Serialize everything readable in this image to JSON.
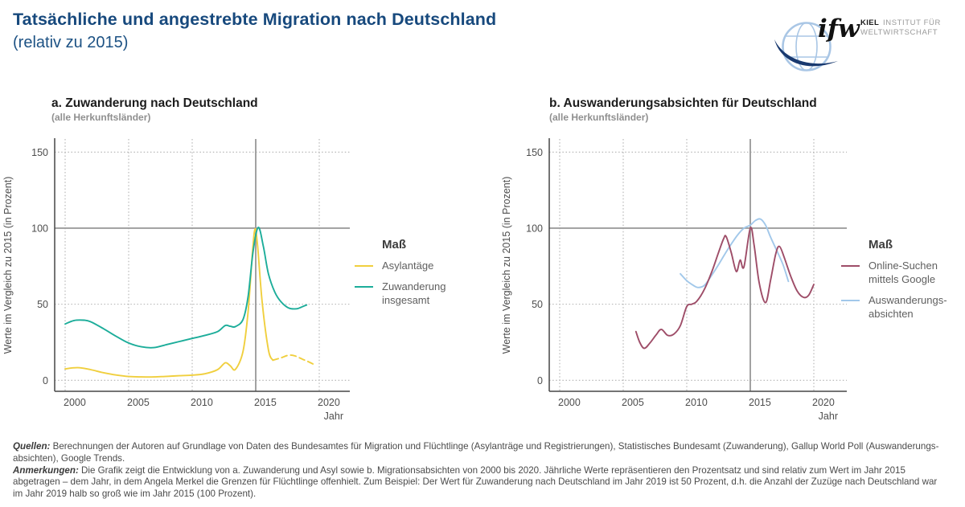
{
  "header": {
    "title": "Tatsächliche und angestrebte Migration nach Deutschland",
    "subtitle": "(relativ zu 2015)",
    "accent_color": "#17497d"
  },
  "logo": {
    "brand": "ifw",
    "line1_bold": "KIEL",
    "line1_rest": "INSTITUT FÜR",
    "line2": "WELTWIRTSCHAFT",
    "globe_color": "#a9c6e5",
    "swoosh_color": "#19396f"
  },
  "chart_data": [
    {
      "type": "line",
      "panel_label": "a",
      "title": "a. Zuwanderung nach Deutschland",
      "subtitle": "(alle Herkunftsländer)",
      "xlabel": "Jahr",
      "ylabel": "Werte im Vergleich zu 2015 (in Prozent)",
      "xlim": [
        1999.2,
        2022.3
      ],
      "ylim": [
        -7,
        160
      ],
      "x_ticks": [
        2000,
        2005,
        2010,
        2015,
        2020
      ],
      "y_ticks": [
        0,
        50,
        100,
        150
      ],
      "reference_lines": {
        "x": 2015,
        "y": 100
      },
      "grid": "dotted",
      "legend_title": "Maß",
      "legend_position": "right",
      "series": [
        {
          "name": "Asylantäge",
          "color": "#F0CF3E",
          "z": 1,
          "segments": [
            {
              "style": "solid",
              "points": [
                [
                  2000,
                  7.5
                ],
                [
                  2001,
                  8.3
                ],
                [
                  2002,
                  7
                ],
                [
                  2003,
                  5
                ],
                [
                  2004,
                  3.5
                ],
                [
                  2005,
                  2.5
                ],
                [
                  2006,
                  2.2
                ],
                [
                  2007,
                  2.2
                ],
                [
                  2008,
                  2.6
                ],
                [
                  2009,
                  3
                ],
                [
                  2010,
                  3.4
                ],
                [
                  2011,
                  4.3
                ],
                [
                  2012,
                  7
                ],
                [
                  2012.6,
                  11.5
                ],
                [
                  2013,
                  9.5
                ],
                [
                  2013.4,
                  7.2
                ],
                [
                  2014,
                  19
                ],
                [
                  2014.4,
                  45
                ],
                [
                  2014.75,
                  85
                ],
                [
                  2014.95,
                  99.5
                ],
                [
                  2015.15,
                  88
                ],
                [
                  2015.5,
                  52
                ],
                [
                  2016,
                  20
                ],
                [
                  2016.35,
                  13.2
                ]
              ]
            },
            {
              "style": "dashed",
              "points": [
                [
                  2016.35,
                  13.2
                ],
                [
                  2017,
                  14.8
                ],
                [
                  2017.6,
                  16.5
                ],
                [
                  2018.1,
                  16
                ],
                [
                  2018.7,
                  13.8
                ],
                [
                  2019.2,
                  12
                ],
                [
                  2019.55,
                  10.5
                ]
              ]
            }
          ]
        },
        {
          "name": "Zuwanderung\ninsgesamt",
          "color": "#1CAD9A",
          "z": 2,
          "segments": [
            {
              "style": "solid",
              "points": [
                [
                  2000,
                  37
                ],
                [
                  2000.7,
                  39.3
                ],
                [
                  2001.5,
                  39.5
                ],
                [
                  2002,
                  38.5
                ],
                [
                  2003,
                  34
                ],
                [
                  2004,
                  29
                ],
                [
                  2005,
                  24.5
                ],
                [
                  2006,
                  22
                ],
                [
                  2007,
                  21.5
                ],
                [
                  2008,
                  23.5
                ],
                [
                  2009,
                  25.5
                ],
                [
                  2010,
                  27.5
                ],
                [
                  2011,
                  29.5
                ],
                [
                  2012,
                  32
                ],
                [
                  2012.6,
                  36
                ],
                [
                  2013,
                  35.5
                ],
                [
                  2013.4,
                  35.3
                ],
                [
                  2014,
                  40
                ],
                [
                  2014.4,
                  55
                ],
                [
                  2014.8,
                  85
                ],
                [
                  2015.2,
                  100.5
                ],
                [
                  2015.6,
                  88
                ],
                [
                  2016,
                  70
                ],
                [
                  2016.5,
                  58
                ],
                [
                  2017,
                  51.5
                ],
                [
                  2017.6,
                  47.5
                ],
                [
                  2018.2,
                  47
                ],
                [
                  2018.7,
                  48.5
                ],
                [
                  2019,
                  49.5
                ]
              ]
            }
          ]
        }
      ]
    },
    {
      "type": "line",
      "panel_label": "b",
      "title": "b. Auswanderungsabsichten für Deutschland",
      "subtitle": "(alle Herkunftsländer)",
      "xlabel": "Jahr",
      "ylabel": "Werte im Vergleich zu 2015 (in Prozent)",
      "xlim": [
        1999.2,
        2022.3
      ],
      "ylim": [
        -7,
        160
      ],
      "x_ticks": [
        2000,
        2005,
        2010,
        2015,
        2020
      ],
      "y_ticks": [
        0,
        50,
        100,
        150
      ],
      "reference_lines": {
        "x": 2015,
        "y": 100
      },
      "grid": "dotted",
      "legend_title": "Maß",
      "legend_position": "right",
      "series": [
        {
          "name": "Online-Suchen\nmittels Google",
          "color": "#9E4D68",
          "z": 2,
          "segments": [
            {
              "style": "solid",
              "points": [
                [
                  2006,
                  32
                ],
                [
                  2006.3,
                  25
                ],
                [
                  2006.65,
                  21
                ],
                [
                  2007.1,
                  24.5
                ],
                [
                  2007.6,
                  30
                ],
                [
                  2008,
                  33.5
                ],
                [
                  2008.5,
                  29.5
                ],
                [
                  2009,
                  30.5
                ],
                [
                  2009.5,
                  36
                ],
                [
                  2010,
                  48.5
                ],
                [
                  2010.4,
                  50
                ],
                [
                  2010.8,
                  52
                ],
                [
                  2011.4,
                  60
                ],
                [
                  2012,
                  72
                ],
                [
                  2012.5,
                  84
                ],
                [
                  2012.9,
                  93
                ],
                [
                  2013.1,
                  94.5
                ],
                [
                  2013.5,
                  84
                ],
                [
                  2013.9,
                  71.5
                ],
                [
                  2014.2,
                  79
                ],
                [
                  2014.5,
                  74.5
                ],
                [
                  2015,
                  100
                ],
                [
                  2015.3,
                  89
                ],
                [
                  2015.7,
                  64
                ],
                [
                  2016.2,
                  51
                ],
                [
                  2016.6,
                  66
                ],
                [
                  2017,
                  83
                ],
                [
                  2017.3,
                  88
                ],
                [
                  2017.7,
                  80
                ],
                [
                  2018.2,
                  68
                ],
                [
                  2018.7,
                  58.5
                ],
                [
                  2019.2,
                  54.5
                ],
                [
                  2019.6,
                  56
                ],
                [
                  2020,
                  63
                ]
              ]
            }
          ]
        },
        {
          "name": "Auswanderungs-\nabsichten",
          "color": "#A2C8EA",
          "z": 1,
          "segments": [
            {
              "style": "solid",
              "points": [
                [
                  2009.5,
                  70
                ],
                [
                  2010,
                  65.5
                ],
                [
                  2010.5,
                  62.5
                ],
                [
                  2010.9,
                  61
                ],
                [
                  2011.4,
                  62.5
                ],
                [
                  2012,
                  69.5
                ],
                [
                  2012.5,
                  76
                ],
                [
                  2013,
                  83
                ],
                [
                  2013.5,
                  89.5
                ],
                [
                  2014,
                  95.5
                ],
                [
                  2014.5,
                  100
                ],
                [
                  2015,
                  102
                ],
                [
                  2015.4,
                  105
                ],
                [
                  2015.8,
                  106
                ],
                [
                  2016.2,
                  102
                ],
                [
                  2016.6,
                  94
                ],
                [
                  2017.1,
                  85
                ],
                [
                  2017.6,
                  75.5
                ],
                [
                  2018,
                  65
                ]
              ]
            }
          ]
        }
      ]
    }
  ],
  "footer": {
    "source_lead": "Quellen:",
    "source_lines": [
      "Berechnungen der Autoren auf Grundlage von Daten des Bundesamtes für Migration und Flüchtlinge (Asylanträge und Registrierungen), Statistisches Bundesamt (Zuwanderung), Gallup World Poll (Auswanderungs-",
      "absichten), Google Trends."
    ],
    "notes_lead": "Anmerkungen:",
    "notes_lines": [
      "Die Grafik zeigt die Entwicklung von a. Zuwanderung und Asyl sowie b. Migrationsabsichten von 2000 bis 2020. Jährliche Werte repräsentieren den Prozentsatz und sind relativ zum Wert im Jahr 2015",
      "abgetragen – dem Jahr, in dem Angela Merkel die Grenzen für Flüchtlinge offenhielt. Zum Beispiel: Der Wert für Zuwanderung nach Deutschland im Jahr 2019 ist 50 Prozent, d.h. die Anzahl der Zuzüge nach Deutschland war",
      "im Jahr 2019 halb so groß wie im Jahr 2015 (100 Prozent)."
    ]
  }
}
